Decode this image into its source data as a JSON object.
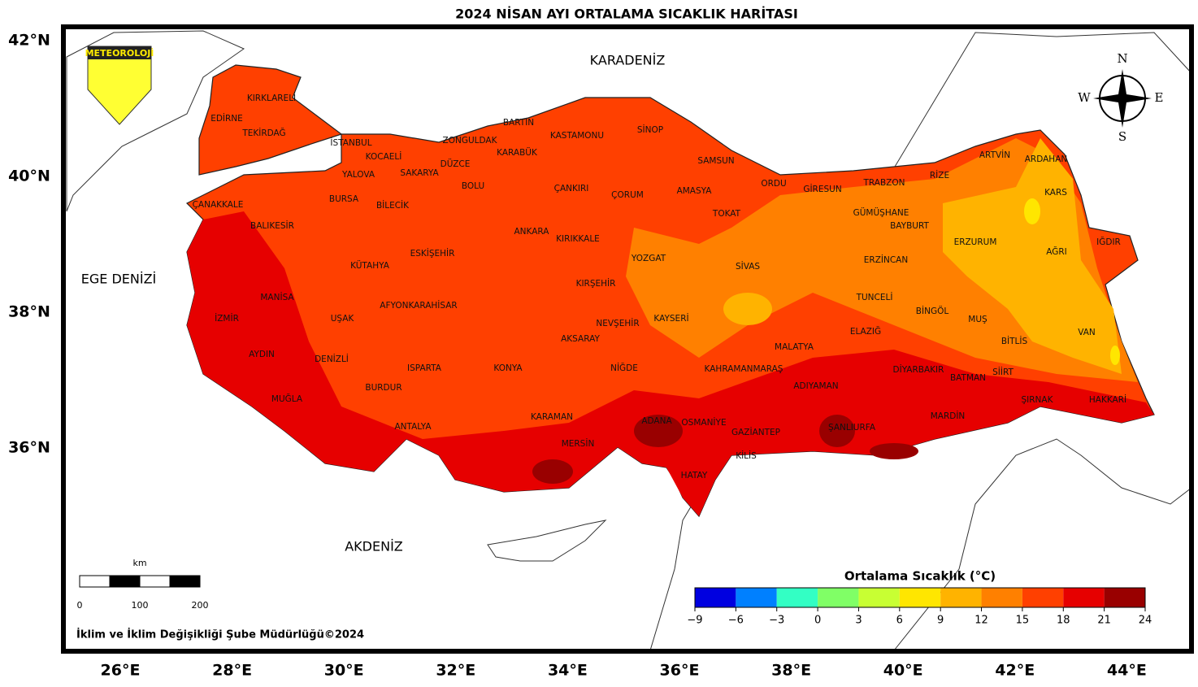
{
  "title": "2024 NİSAN AYI ORTALAMA SICAKLIK HARİTASI",
  "logo": "METEOROLOJİ",
  "compass": {
    "n": "N",
    "s": "S",
    "e": "E",
    "w": "W"
  },
  "seas": [
    "KARADENİZ",
    "EGE DENİZİ",
    "AKDENİZ"
  ],
  "lat_labels": [
    "42°N",
    "40°N",
    "38°N",
    "36°N"
  ],
  "lon_labels": [
    "26°E",
    "28°E",
    "30°E",
    "32°E",
    "34°E",
    "36°E",
    "38°E",
    "40°E",
    "42°E",
    "44°E"
  ],
  "provinces": [
    "KIRKLARELİ",
    "EDİRNE",
    "TEKİRDAĞ",
    "İSTANBUL",
    "KOCAELİ",
    "YALOVA",
    "SAKARYA",
    "DÜZCE",
    "ZONGULDAK",
    "BARTIN",
    "KARABÜK",
    "KASTAMONU",
    "SİNOP",
    "SAMSUN",
    "BOLU",
    "ÇANKIRI",
    "ÇORUM",
    "AMASYA",
    "ORDU",
    "GİRESUN",
    "TRABZON",
    "RİZE",
    "ARTVİN",
    "ARDAHAN",
    "KARS",
    "ÇANAKKALE",
    "BURSA",
    "BİLECİK",
    "BALIKESİR",
    "ANKARA",
    "KIRIKKALE",
    "TOKAT",
    "GÜMÜŞHANE",
    "BAYBURT",
    "ERZURUM",
    "IĞDIR",
    "AĞRI",
    "ESKİŞEHİR",
    "KÜTAHYA",
    "YOZGAT",
    "SİVAS",
    "ERZİNCAN",
    "KIRŞEHİR",
    "MANİSA",
    "TUNCELİ",
    "AFYONKARAHİSAR",
    "BİNGÖL",
    "İZMİR",
    "UŞAK",
    "KAYSERİ",
    "NEVŞEHİR",
    "MUŞ",
    "VAN",
    "ELAZIĞ",
    "AKSARAY",
    "BİTLİS",
    "MALATYA",
    "AYDIN",
    "DENİZLİ",
    "ISPARTA",
    "KONYA",
    "NİĞDE",
    "KAHRAMANMARAŞ",
    "DİYARBAKIR",
    "SİİRT",
    "BATMAN",
    "ADIYAMAN",
    "BURDUR",
    "HAKKARİ",
    "MUĞLA",
    "ŞIRNAK",
    "MARDİN",
    "KARAMAN",
    "ADANA",
    "OSMANİYE",
    "ANTALYA",
    "ŞANLIURFA",
    "GAZİANTEP",
    "MERSİN",
    "KİLİS",
    "HATAY"
  ],
  "legend": {
    "title": "Ortalama Sıcaklık (°C)",
    "ticks": [
      {
        "value": -9,
        "label": "−9"
      },
      {
        "value": -6,
        "label": "−6"
      },
      {
        "value": -3,
        "label": "−3"
      },
      0,
      3,
      6,
      9,
      12,
      15,
      18,
      21,
      24
    ],
    "colors": [
      "#0000e0",
      "#0080ff",
      "#33ffc4",
      "#80ff66",
      "#c8ff33",
      "#ffe600",
      "#ffb300",
      "#ff8000",
      "#ff4000",
      "#e60000",
      "#990000"
    ]
  },
  "scale": {
    "unit": "km",
    "ticks": [
      0,
      100,
      200
    ]
  },
  "footer": "İklim ve İklim Değişikliği Şube Müdürlüğü©2024"
}
